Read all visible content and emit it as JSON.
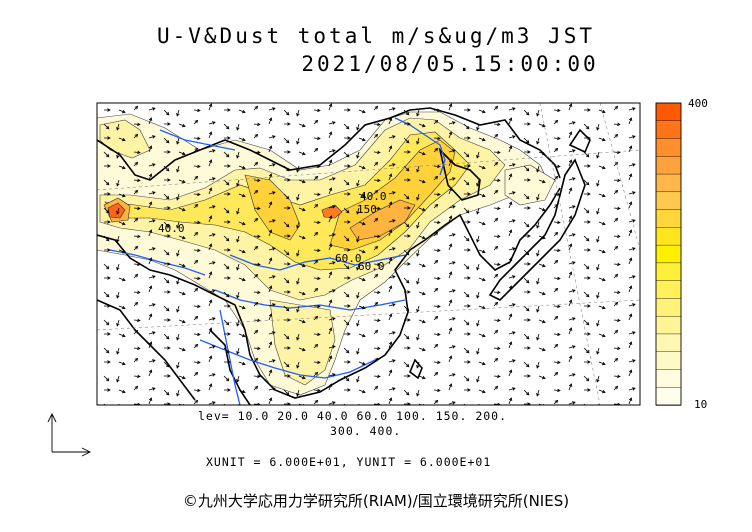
{
  "title": {
    "line1": "U-V&Dust total m/s&ug/m3 JST",
    "line2": "2021/08/05.15:00:00"
  },
  "levels": {
    "line1": "lev= 10.0 20.0 40.0 60.0 100. 150. 200.",
    "line2": "300. 400."
  },
  "units": {
    "text": "XUNIT = 6.000E+01, YUNIT = 6.000E+01"
  },
  "color_scale": {
    "max_label": "400",
    "min_label": "10",
    "colors": [
      "#ff5a00",
      "#ff7418",
      "#ff8e2c",
      "#ffa23c",
      "#ffb64a",
      "#ffc84e",
      "#ffd73a",
      "#ffe41e",
      "#fff000",
      "#ffef3a",
      "#fff05c",
      "#fff27a",
      "#fff496",
      "#fff7b2",
      "#fff9c8",
      "#fffbdc",
      "#fffdec"
    ]
  },
  "contour_labels": [
    "40.0",
    "40.0",
    "150",
    "60.0",
    "60.0"
  ],
  "copyright": "©九州大学応用力学研究所(RIAM)/国立環境研究所(NIES)"
}
